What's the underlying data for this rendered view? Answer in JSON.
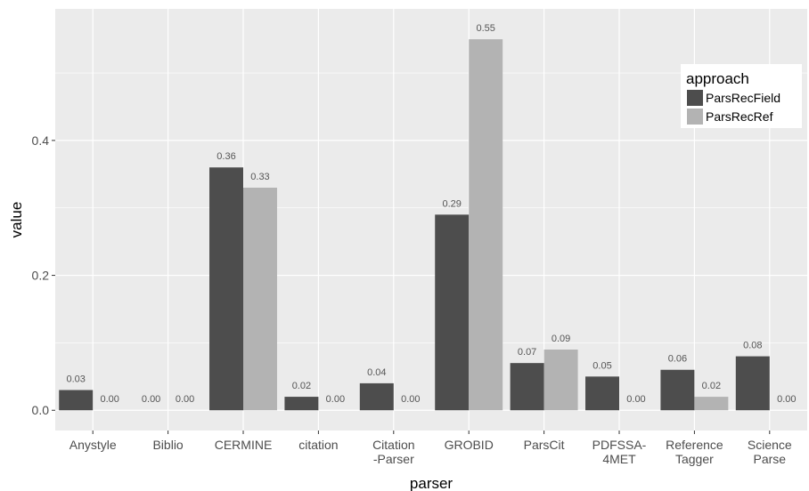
{
  "chart_data": {
    "type": "bar",
    "xlabel": "parser",
    "ylabel": "value",
    "ylim": [
      -0.03,
      0.595
    ],
    "yticks": [
      0.0,
      0.2,
      0.4
    ],
    "ytick_labels": [
      "0.0",
      "0.2",
      "0.4"
    ],
    "categories": [
      [
        "Anystyle"
      ],
      [
        "Biblio"
      ],
      [
        "CERMINE"
      ],
      [
        "citation"
      ],
      [
        "Citation",
        "-Parser"
      ],
      [
        "GROBID"
      ],
      [
        "ParsCit"
      ],
      [
        "PDFSSA-",
        "4MET"
      ],
      [
        "Reference",
        "Tagger"
      ],
      [
        "Science",
        "Parse"
      ]
    ],
    "series": [
      {
        "name": "ParsRecField",
        "color": "#4d4d4d",
        "values": [
          0.03,
          0.0,
          0.36,
          0.02,
          0.04,
          0.29,
          0.07,
          0.05,
          0.06,
          0.08
        ],
        "labels": [
          "0.03",
          "0.00",
          "0.36",
          "0.02",
          "0.04",
          "0.29",
          "0.07",
          "0.05",
          "0.06",
          "0.08"
        ]
      },
      {
        "name": "ParsRecRef",
        "color": "#b3b3b3",
        "values": [
          0.0,
          0.0,
          0.33,
          0.0,
          0.0,
          0.55,
          0.09,
          0.0,
          0.02,
          0.0
        ],
        "labels": [
          "0.00",
          "0.00",
          "0.33",
          "0.00",
          "0.00",
          "0.55",
          "0.09",
          "0.00",
          "0.02",
          "0.00"
        ]
      }
    ],
    "legend": {
      "title": "approach",
      "position": "top-right"
    },
    "grid": true,
    "panel_background": "#ebebeb",
    "grid_color": "#ffffff"
  }
}
